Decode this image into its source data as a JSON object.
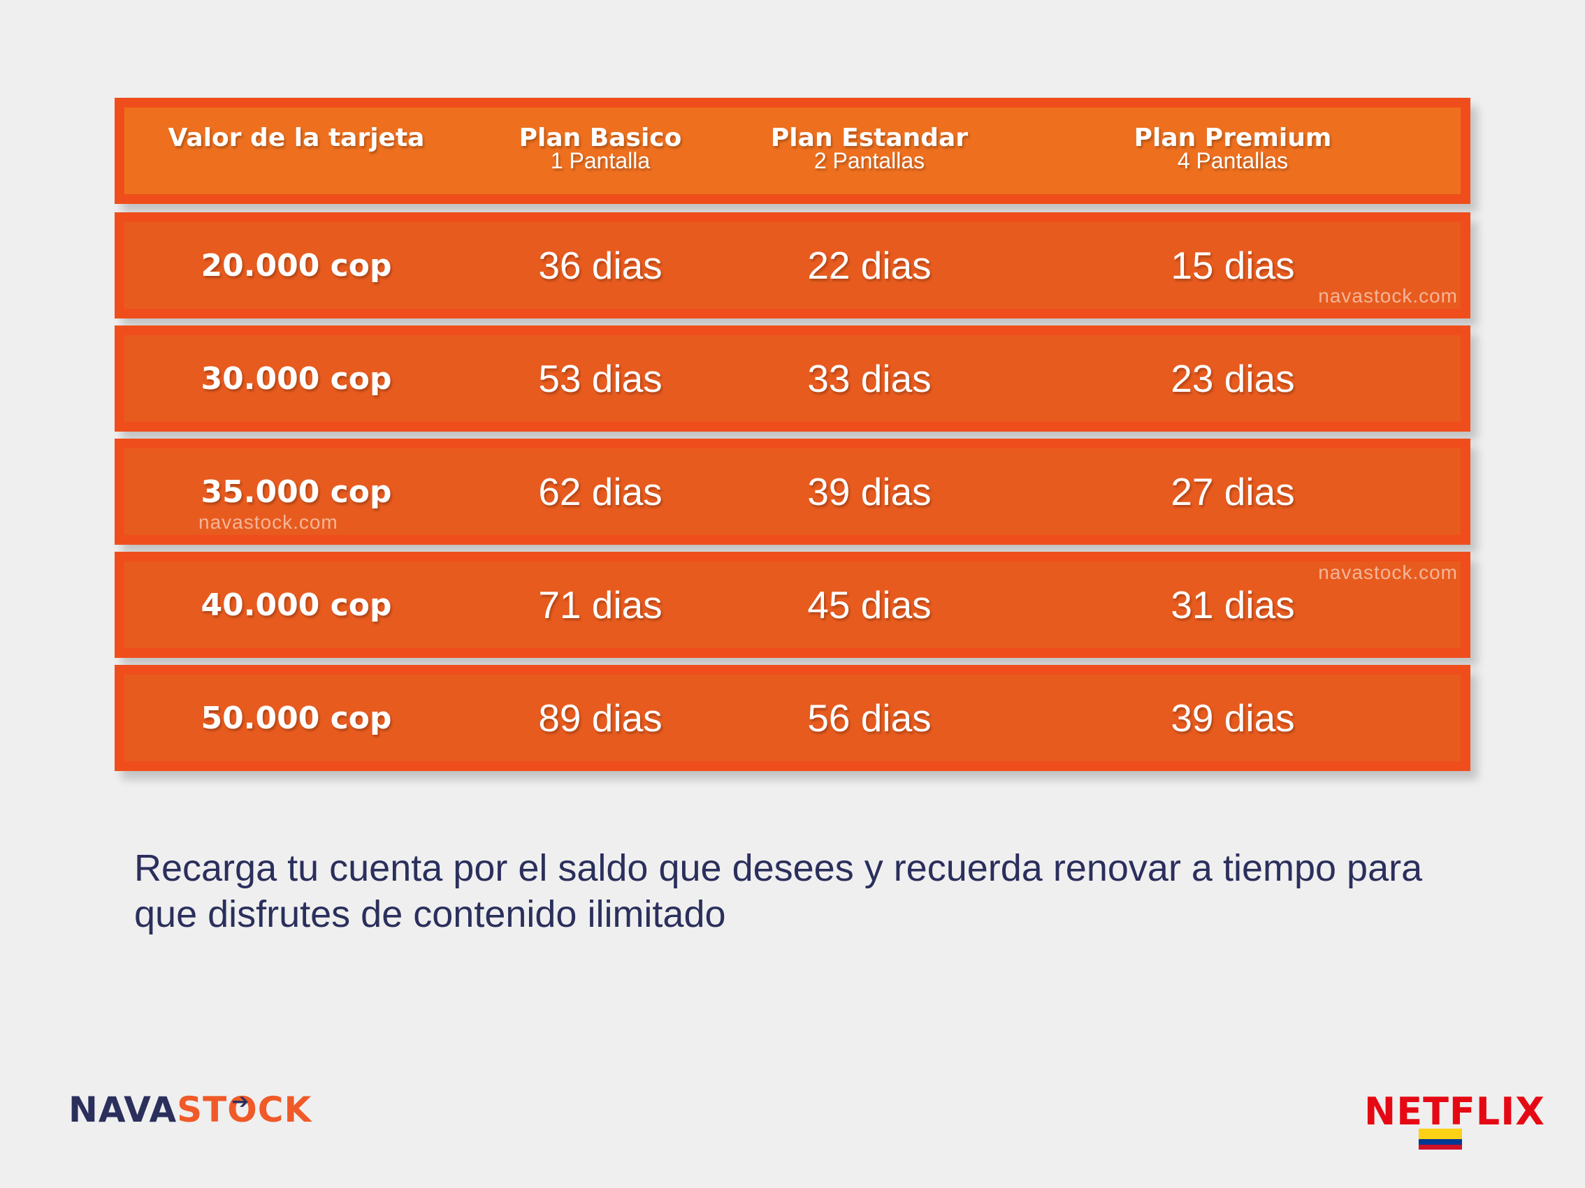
{
  "table": {
    "headers": [
      {
        "title": "Valor de la tarjeta",
        "subtitle": ""
      },
      {
        "title": "Plan Basico",
        "subtitle": "1  Pantalla"
      },
      {
        "title": "Plan Estandar",
        "subtitle": "2 Pantallas"
      },
      {
        "title": "Plan Premium",
        "subtitle": "4 Pantallas"
      }
    ],
    "rows": [
      {
        "value": "20.000 cop",
        "basico": "36 dias",
        "estandar": "22 dias",
        "premium": "15 dias"
      },
      {
        "value": "30.000 cop",
        "basico": "53 dias",
        "estandar": "33 dias",
        "premium": "23 dias"
      },
      {
        "value": "35.000 cop",
        "basico": "62 dias",
        "estandar": "39 dias",
        "premium": "27 dias"
      },
      {
        "value": "40.000 cop",
        "basico": "71 dias",
        "estandar": "45 dias",
        "premium": "31 dias"
      },
      {
        "value": "50.000 cop",
        "basico": "89 dias",
        "estandar": "56 dias",
        "premium": "39 dias"
      }
    ]
  },
  "watermark": "navastock.com",
  "message": "Recarga tu cuenta por el saldo que desees y recuerda renovar a tiempo para que disfrutes de contenido ilimitado",
  "logos": {
    "navastock_part1": "NAVA",
    "navastock_part2": "ST",
    "navastock_part3": "CK",
    "netflix": "NETFLIX"
  },
  "colors": {
    "row": "#e85b1e",
    "header": "#ee701f",
    "border": "#ef4e1c",
    "text_dark": "#2b2f5c",
    "netflix_red": "#e50914"
  }
}
